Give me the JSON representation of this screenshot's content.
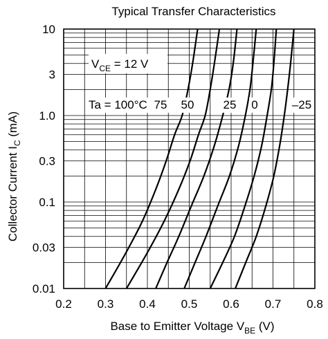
{
  "chart_data": {
    "type": "line",
    "title": "Typical Transfer Characteristics",
    "xlabel": {
      "main": "Base to Emitter Voltage  V",
      "sub": "BE",
      "unit": "  (V)"
    },
    "ylabel": {
      "main": "Collector Current  I",
      "sub": "C",
      "unit": "  (mA)"
    },
    "xlim": [
      0.2,
      0.8
    ],
    "ylim": [
      0.01,
      10
    ],
    "yscale": "log",
    "grid": true,
    "x_ticks": [
      {
        "value": 0.2,
        "label": "0.2"
      },
      {
        "value": 0.3,
        "label": "0.3"
      },
      {
        "value": 0.4,
        "label": "0.4"
      },
      {
        "value": 0.5,
        "label": "0.5"
      },
      {
        "value": 0.6,
        "label": "0.6"
      },
      {
        "value": 0.7,
        "label": "0.7"
      },
      {
        "value": 0.8,
        "label": "0.8"
      }
    ],
    "y_ticks": [
      {
        "value": 10,
        "label": "10"
      },
      {
        "value": 3,
        "label": "3"
      },
      {
        "value": 1.0,
        "label": "1.0"
      },
      {
        "value": 0.3,
        "label": "0.3"
      },
      {
        "value": 0.1,
        "label": "0.1"
      },
      {
        "value": 0.03,
        "label": "0.03"
      },
      {
        "value": 0.01,
        "label": "0.01"
      }
    ],
    "annotations": {
      "vce": {
        "main": "V",
        "sub": "CE",
        "rest": " = 12 V"
      },
      "ta_prefix": "Ta = 100°C"
    },
    "series": [
      {
        "name": "100",
        "label": "",
        "x": [
          0.3,
          0.347,
          0.388,
          0.42,
          0.445,
          0.465,
          0.483,
          0.497,
          0.508,
          0.52
        ],
        "y": [
          0.01,
          0.025,
          0.06,
          0.14,
          0.3,
          0.6,
          1.0,
          2.0,
          4.0,
          10
        ]
      },
      {
        "name": "75",
        "label": "75",
        "x": [
          0.35,
          0.398,
          0.44,
          0.475,
          0.502,
          0.522,
          0.538,
          0.55,
          0.56,
          0.572
        ],
        "y": [
          0.01,
          0.025,
          0.06,
          0.14,
          0.3,
          0.6,
          1.0,
          2.0,
          4.0,
          10
        ]
      },
      {
        "name": "50",
        "label": "50",
        "x": [
          0.42,
          0.447,
          0.475,
          0.505,
          0.535,
          0.56,
          0.58,
          0.595,
          0.605,
          0.614
        ],
        "y": [
          0.01,
          0.02,
          0.04,
          0.09,
          0.2,
          0.45,
          1.0,
          2.0,
          4.0,
          10
        ]
      },
      {
        "name": "25",
        "label": "25",
        "x": [
          0.488,
          0.514,
          0.54,
          0.568,
          0.596,
          0.618,
          0.634,
          0.645,
          0.652,
          0.66
        ],
        "y": [
          0.01,
          0.02,
          0.04,
          0.09,
          0.2,
          0.45,
          1.0,
          2.0,
          4.0,
          10
        ]
      },
      {
        "name": "0",
        "label": "0",
        "x": [
          0.55,
          0.58,
          0.608,
          0.633,
          0.655,
          0.673,
          0.686,
          0.696,
          0.702,
          0.708
        ],
        "y": [
          0.01,
          0.02,
          0.04,
          0.09,
          0.2,
          0.45,
          1.0,
          2.0,
          4.0,
          10
        ]
      },
      {
        "name": "-25",
        "label": "–25",
        "x": [
          0.61,
          0.635,
          0.66,
          0.683,
          0.702,
          0.716,
          0.727,
          0.735,
          0.742,
          0.75
        ],
        "y": [
          0.01,
          0.02,
          0.04,
          0.09,
          0.2,
          0.45,
          1.0,
          2.0,
          4.0,
          10
        ]
      }
    ]
  }
}
